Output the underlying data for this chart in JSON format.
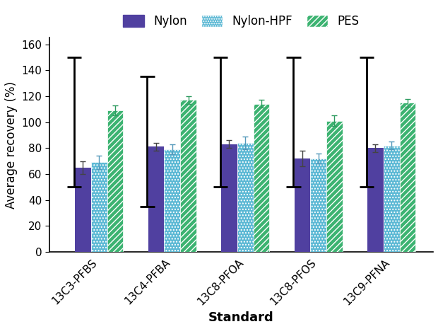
{
  "categories": [
    "13C3-PFBS",
    "13C4-PFBA",
    "13C8-PFOA",
    "13C8-PFOS",
    "13C9-PFNA"
  ],
  "nylon": [
    65,
    81,
    83,
    72,
    80
  ],
  "nylon_hpf": [
    69,
    79,
    84,
    72,
    82
  ],
  "pes": [
    109,
    117,
    114,
    101,
    115
  ],
  "nylon_err": [
    5,
    3,
    3,
    6,
    3
  ],
  "nylon_hpf_err": [
    5,
    4,
    5,
    4,
    3
  ],
  "pes_err": [
    4,
    3,
    3,
    4,
    3
  ],
  "qc_ranges": {
    "PFBS": [
      50,
      150
    ],
    "PFBA": [
      35,
      135
    ],
    "PFOA": [
      50,
      150
    ],
    "PFOS": [
      50,
      150
    ],
    "PFNA": [
      50,
      150
    ]
  },
  "bar_width": 0.22,
  "ylabel": "Average recovery (%)",
  "xlabel": "Standard",
  "ylim": [
    0,
    165
  ],
  "yticks": [
    0,
    20,
    40,
    60,
    80,
    100,
    120,
    140,
    160
  ],
  "nylon_color": "#5040A0",
  "nylon_hpf_color": "#5BB8D4",
  "pes_color": "#3CB371",
  "background_color": "#ffffff",
  "legend_labels": [
    "Nylon",
    "Nylon-HPF",
    "PES"
  ],
  "label_fontsize": 12,
  "tick_fontsize": 11
}
